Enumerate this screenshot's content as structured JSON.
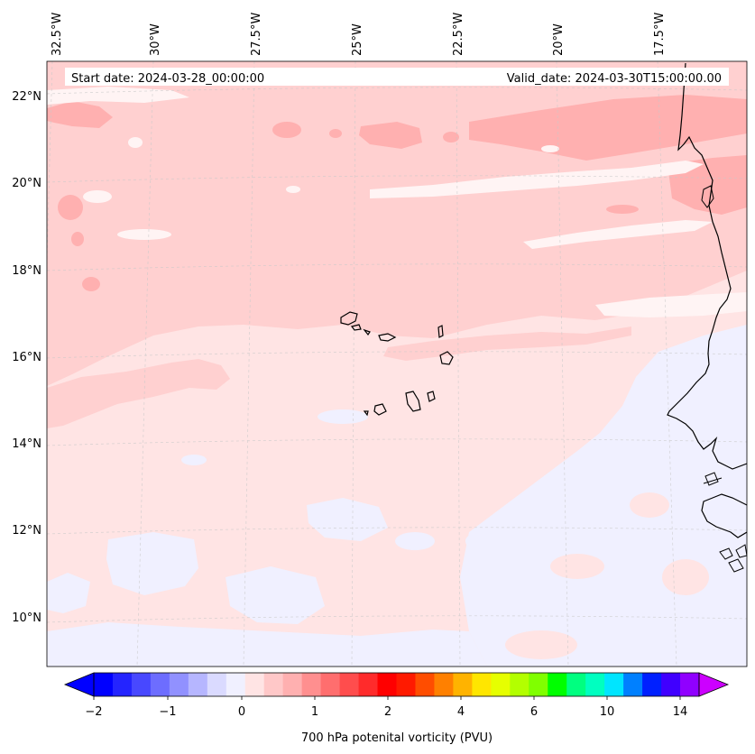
{
  "header": {
    "start_date": "Start date: 2024-03-28_00:00:00",
    "valid_date": "Valid_date: 2024-03-30T15:00:00.00"
  },
  "lon_labels": [
    "32.5°W",
    "30°W",
    "27.5°W",
    "25°W",
    "22.5°W",
    "20°W",
    "17.5°W"
  ],
  "lat_labels": [
    "22°N",
    "20°N",
    "18°N",
    "16°N",
    "14°N",
    "12°N",
    "10°N"
  ],
  "colorbar": {
    "label": "700 hPa potenital vorticity (PVU)",
    "tick_labels": [
      "−2",
      "−1",
      "0",
      "1",
      "2",
      "4",
      "6",
      "10",
      "14"
    ],
    "colors": [
      "#0000ff",
      "#2424ff",
      "#4848ff",
      "#6d6dff",
      "#9191ff",
      "#b6b6ff",
      "#dadaff",
      "#f0f0ff",
      "#ffe4e4",
      "#ffc8c8",
      "#ffb0b0",
      "#ff8f8f",
      "#ff6e6e",
      "#ff4d4d",
      "#ff2b2b",
      "#ff0000",
      "#ff1a00",
      "#ff4d00",
      "#ff8000",
      "#ffb300",
      "#ffe600",
      "#e6ff00",
      "#b3ff00",
      "#80ff00",
      "#00ff00",
      "#00ff80",
      "#00ffc0",
      "#00e5ff",
      "#0080ff",
      "#0020ff",
      "#4000ff",
      "#9000ff"
    ],
    "under_color": "#0000ff",
    "over_color": "#cc00ff"
  },
  "map": {
    "ocean_base_color": "#ffe4e4",
    "field_colors": {
      "light_pink": "#ffe4e4",
      "pink": "#ffd0d0",
      "dark_pink": "#ffb0b0",
      "near_white": "#fff4f4",
      "light_blue": "#f0f0ff"
    },
    "coastline_color": "#000000"
  }
}
